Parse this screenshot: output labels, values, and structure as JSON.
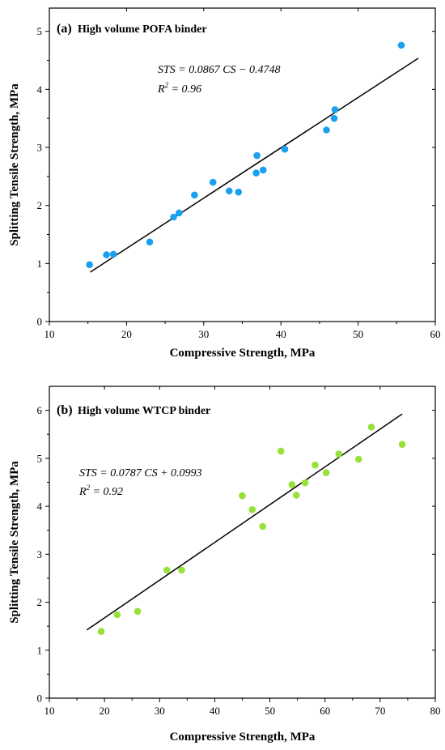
{
  "chart_data": [
    {
      "type": "scatter",
      "panel_tag": "(a)",
      "title": "High volume POFA binder",
      "xlabel": "Compressive Strength, MPa",
      "ylabel": "Splitting Tensile Strength, MPa",
      "xlim": [
        10,
        60
      ],
      "ylim": [
        0,
        5.4
      ],
      "xticks": [
        "10",
        "20",
        "30",
        "40",
        "50",
        "60"
      ],
      "yticks": [
        "0",
        "1",
        "2",
        "3",
        "4",
        "5"
      ],
      "equation": "STS = 0.0867 CS − 0.4748",
      "r2_label": "R",
      "r2_sup": "2",
      "r2_value": " = 0.96",
      "marker_color": "#1aa1ee",
      "fit": {
        "x": [
          15.3,
          57.8
        ],
        "slope": 0.0867,
        "intercept": -0.4748
      },
      "points": {
        "x": [
          15.2,
          17.4,
          18.3,
          23.0,
          26.1,
          26.8,
          28.8,
          31.2,
          33.3,
          34.5,
          36.8,
          36.9,
          37.7,
          40.5,
          45.9,
          46.9,
          47.0,
          55.6
        ],
        "y": [
          0.98,
          1.15,
          1.16,
          1.37,
          1.8,
          1.87,
          2.18,
          2.4,
          2.25,
          2.23,
          2.56,
          2.86,
          2.61,
          2.97,
          3.3,
          3.5,
          3.65,
          4.76
        ]
      }
    },
    {
      "type": "scatter",
      "panel_tag": "(b)",
      "title": "High volume WTCP binder",
      "xlabel": "Compressive Strength, MPa",
      "ylabel": "Splitting Tensile Strength, MPa",
      "xlim": [
        10,
        80
      ],
      "ylim": [
        0,
        6.5
      ],
      "xticks": [
        "10",
        "20",
        "30",
        "40",
        "50",
        "60",
        "70",
        "80"
      ],
      "yticks": [
        "0",
        "1",
        "2",
        "3",
        "4",
        "5",
        "6"
      ],
      "equation": "STS = 0.0787 CS + 0.0993",
      "r2_label": "R",
      "r2_sup": "2",
      "r2_value": " = 0.92",
      "marker_color": "#97e13a",
      "fit": {
        "x": [
          16.8,
          74.0
        ],
        "slope": 0.0787,
        "intercept": 0.0993
      },
      "points": {
        "x": [
          19.4,
          22.3,
          26.0,
          31.3,
          34.0,
          45.0,
          46.8,
          48.7,
          52.0,
          54.0,
          54.8,
          56.4,
          58.2,
          60.2,
          62.5,
          66.1,
          68.4,
          74.0
        ],
        "y": [
          1.39,
          1.74,
          1.81,
          2.67,
          2.67,
          4.22,
          3.93,
          3.58,
          5.15,
          4.45,
          4.23,
          4.49,
          4.86,
          4.7,
          5.09,
          4.98,
          5.65,
          5.29
        ]
      }
    }
  ]
}
